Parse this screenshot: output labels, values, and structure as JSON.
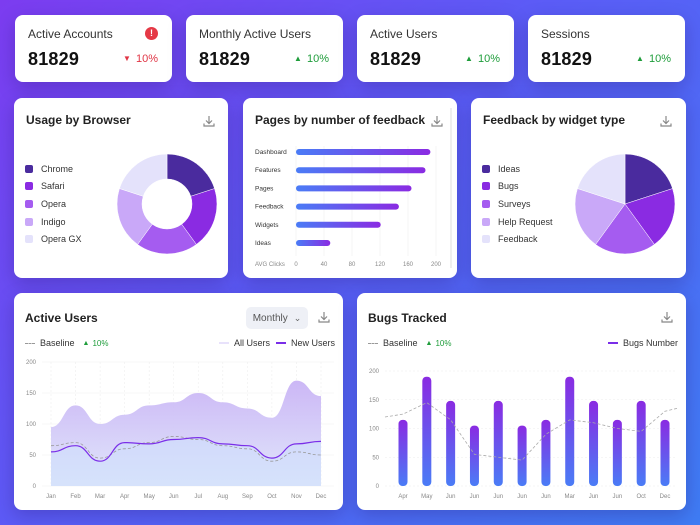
{
  "kpis": [
    {
      "title": "Active Accounts",
      "value": "81829",
      "change": "10%",
      "direction": "down",
      "alert": true
    },
    {
      "title": "Monthly Active Users",
      "value": "81829",
      "change": "10%",
      "direction": "up",
      "alert": false
    },
    {
      "title": "Active Users",
      "value": "81829",
      "change": "10%",
      "direction": "up",
      "alert": false
    },
    {
      "title": "Sessions",
      "value": "81829",
      "change": "10%",
      "direction": "up",
      "alert": false
    }
  ],
  "browser_card": {
    "title": "Usage by Browser",
    "legend": [
      {
        "label": "Chrome",
        "color": "#4a2b9e"
      },
      {
        "label": "Safari",
        "color": "#8a2be2"
      },
      {
        "label": "Opera",
        "color": "#a55cf0"
      },
      {
        "label": "Indigo",
        "color": "#c9a8f8"
      },
      {
        "label": "Opera GX",
        "color": "#e4e2fb"
      }
    ]
  },
  "feedback_pages_card": {
    "title": "Pages by number of feedback"
  },
  "widget_card": {
    "title": "Feedback by widget type",
    "legend": [
      {
        "label": "Ideas",
        "color": "#4a2b9e"
      },
      {
        "label": "Bugs",
        "color": "#8a2be2"
      },
      {
        "label": "Surveys",
        "color": "#a55cf0"
      },
      {
        "label": "Help Request",
        "color": "#c9a8f8"
      },
      {
        "label": "Feedback",
        "color": "#e4e2fb"
      }
    ]
  },
  "active_users_card": {
    "title": "Active Users",
    "period": "Monthly",
    "legend": {
      "baseline": "Baseline",
      "baseline_change": "10%",
      "all": "All Users",
      "new": "New Users"
    }
  },
  "bugs_card": {
    "title": "Bugs Tracked",
    "legend": {
      "baseline": "Baseline",
      "baseline_change": "10%",
      "series": "Bugs Number"
    }
  },
  "chart_data": [
    {
      "type": "pie",
      "title": "Usage by Browser",
      "variant": "donut",
      "categories": [
        "Chrome",
        "Safari",
        "Opera",
        "Indigo",
        "Opera GX"
      ],
      "values": [
        20,
        20,
        20,
        20,
        20
      ],
      "colors": [
        "#4a2b9e",
        "#8a2be2",
        "#a55cf0",
        "#c9a8f8",
        "#e4e2fb"
      ]
    },
    {
      "type": "bar",
      "title": "Pages by number of feedback",
      "orientation": "horizontal",
      "categories": [
        "Dashboard",
        "Features",
        "Pages",
        "Feedback",
        "Widgets",
        "Ideas"
      ],
      "values": [
        192,
        185,
        165,
        147,
        121,
        49
      ],
      "xlabel": "AVG Clicks",
      "xticks": [
        0,
        40,
        80,
        120,
        160,
        200
      ],
      "xlim": [
        0,
        210
      ]
    },
    {
      "type": "pie",
      "title": "Feedback by widget type",
      "categories": [
        "Ideas",
        "Bugs",
        "Surveys",
        "Help Request",
        "Feedback"
      ],
      "values": [
        20,
        20,
        20,
        20,
        20
      ],
      "colors": [
        "#4a2b9e",
        "#8a2be2",
        "#a55cf0",
        "#c9a8f8",
        "#e4e2fb"
      ]
    },
    {
      "type": "area",
      "title": "Active Users",
      "categories": [
        "Jan",
        "Feb",
        "Mar",
        "Apr",
        "May",
        "Jun",
        "Jul",
        "Aug",
        "Sep",
        "Oct",
        "Nov",
        "Dec"
      ],
      "series": [
        {
          "name": "All Users",
          "values": [
            95,
            130,
            100,
            115,
            130,
            135,
            150,
            135,
            125,
            110,
            170,
            145
          ]
        },
        {
          "name": "New Users",
          "values": [
            55,
            65,
            40,
            70,
            68,
            75,
            78,
            68,
            65,
            45,
            68,
            72
          ]
        },
        {
          "name": "Baseline",
          "values": [
            65,
            70,
            45,
            60,
            70,
            80,
            75,
            65,
            60,
            40,
            55,
            50
          ]
        }
      ],
      "yticks": [
        0,
        50,
        100,
        150,
        200
      ],
      "ylim": [
        0,
        200
      ]
    },
    {
      "type": "bar",
      "title": "Bugs Tracked",
      "categories": [
        "Apr",
        "May",
        "Jun",
        "Jun",
        "Jun",
        "Jun",
        "Jun",
        "Mar",
        "Jun",
        "Jun",
        "Oct",
        "Dec"
      ],
      "series": [
        {
          "name": "Bugs Number",
          "values": [
            115,
            190,
            148,
            105,
            148,
            105,
            115,
            190,
            148,
            115,
            148,
            115
          ]
        },
        {
          "name": "Baseline",
          "values": [
            125,
            145,
            115,
            55,
            50,
            45,
            90,
            115,
            110,
            100,
            95,
            130
          ]
        }
      ],
      "yticks": [
        0,
        50,
        100,
        150,
        200
      ],
      "ylim": [
        0,
        200
      ]
    }
  ]
}
